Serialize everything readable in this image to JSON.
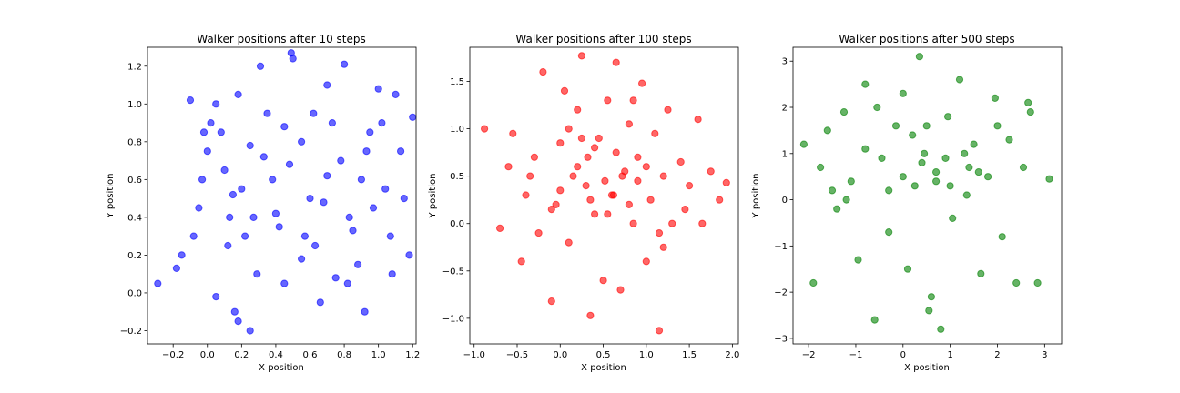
{
  "figure": {
    "background": "#ffffff"
  },
  "chart_data": [
    {
      "type": "scatter",
      "title": "Walker positions after 10 steps",
      "xlabel": "X position",
      "ylabel": "Y position",
      "xlim": [
        -0.35,
        1.22
      ],
      "ylim": [
        -0.27,
        1.3
      ],
      "xticks": [
        -0.2,
        0.0,
        0.2,
        0.4,
        0.6,
        0.8,
        1.0,
        1.2
      ],
      "xtick_labels": [
        "−0.2",
        "0.0",
        "0.2",
        "0.4",
        "0.6",
        "0.8",
        "1.0",
        "1.2"
      ],
      "yticks": [
        -0.2,
        0.0,
        0.2,
        0.4,
        0.6,
        0.8,
        1.0,
        1.2
      ],
      "ytick_labels": [
        "−0.2",
        "0.0",
        "0.2",
        "0.4",
        "0.6",
        "0.8",
        "1.0",
        "1.2"
      ],
      "grid": false,
      "color": "#0000ff",
      "alpha": 0.6,
      "series": [
        {
          "x": [
            -0.29,
            -0.18,
            -0.15,
            -0.08,
            -0.05,
            -0.03,
            0.0,
            0.02,
            0.05,
            0.08,
            0.1,
            0.13,
            0.16,
            0.18,
            0.22,
            0.25,
            0.29,
            0.31,
            0.35,
            0.38,
            0.42,
            0.45,
            0.49,
            0.5,
            0.55,
            0.6,
            0.63,
            0.66,
            0.7,
            0.73,
            0.78,
            0.8,
            0.83,
            0.88,
            0.92,
            0.95,
            1.0,
            1.04,
            1.07,
            1.1,
            1.13,
            1.15,
            1.18,
            1.2,
            -0.1,
            0.05,
            0.15,
            0.25,
            0.4,
            0.55,
            0.7,
            0.85,
            1.02,
            0.2,
            0.48,
            0.75,
            0.97,
            0.12,
            0.33,
            0.62,
            0.9,
            1.08,
            -0.02,
            0.27,
            0.57,
            0.82,
            0.18,
            0.45,
            0.68,
            0.93
          ],
          "y": [
            0.05,
            0.13,
            0.2,
            0.3,
            0.45,
            0.6,
            0.75,
            0.9,
            1.0,
            0.85,
            0.65,
            0.4,
            -0.1,
            -0.15,
            0.3,
            -0.2,
            0.1,
            1.2,
            0.95,
            0.6,
            0.35,
            0.05,
            1.27,
            1.24,
            0.8,
            0.5,
            0.25,
            -0.05,
            1.1,
            0.9,
            0.7,
            1.21,
            0.4,
            0.15,
            -0.1,
            0.85,
            1.08,
            0.55,
            0.3,
            1.05,
            0.75,
            0.5,
            0.2,
            0.93,
            1.02,
            -0.02,
            0.52,
            0.78,
            0.42,
            0.18,
            0.62,
            0.33,
            0.9,
            0.55,
            0.68,
            0.08,
            0.45,
            0.25,
            0.72,
            0.95,
            0.6,
            0.1,
            0.85,
            0.4,
            0.3,
            0.05,
            1.05,
            0.88,
            0.48,
            0.75
          ]
        }
      ]
    },
    {
      "type": "scatter",
      "title": "Walker positions after 100 steps",
      "xlabel": "X position",
      "ylabel": "Y position",
      "xlim": [
        -1.05,
        2.07
      ],
      "ylim": [
        -1.27,
        1.86
      ],
      "xticks": [
        -1.0,
        -0.5,
        0.0,
        0.5,
        1.0,
        1.5,
        2.0
      ],
      "xtick_labels": [
        "−1.0",
        "−0.5",
        "0.0",
        "0.5",
        "1.0",
        "1.5",
        "2.0"
      ],
      "yticks": [
        -1.0,
        -0.5,
        0.0,
        0.5,
        1.0,
        1.5
      ],
      "ytick_labels": [
        "−1.0",
        "−0.5",
        "0.0",
        "0.5",
        "1.0",
        "1.5"
      ],
      "grid": false,
      "color": "#ff0000",
      "alpha": 0.6,
      "series": [
        {
          "x": [
            -0.88,
            -0.7,
            -0.6,
            -0.55,
            -0.45,
            -0.4,
            -0.3,
            -0.25,
            -0.2,
            -0.1,
            -0.05,
            0.0,
            0.05,
            0.1,
            0.15,
            0.2,
            0.25,
            0.3,
            0.35,
            0.4,
            0.45,
            0.5,
            0.55,
            0.6,
            0.65,
            0.7,
            0.75,
            0.8,
            0.85,
            0.9,
            0.95,
            1.0,
            1.05,
            1.1,
            1.15,
            1.2,
            1.25,
            1.3,
            1.4,
            1.5,
            1.6,
            1.65,
            1.75,
            1.85,
            1.93,
            -0.1,
            0.2,
            0.32,
            0.52,
            0.62,
            0.72,
            1.15,
            0.1,
            0.4,
            0.8,
            1.0,
            -0.35,
            0.0,
            0.25,
            0.55,
            0.9,
            1.2,
            1.45,
            0.35,
            0.65,
            0.85
          ],
          "y": [
            1.0,
            -0.05,
            0.6,
            0.95,
            -0.4,
            0.3,
            0.7,
            -0.1,
            1.6,
            -0.82,
            0.2,
            0.85,
            1.4,
            -0.2,
            0.5,
            1.2,
            1.77,
            0.4,
            -0.97,
            0.1,
            0.9,
            -0.6,
            1.3,
            0.3,
            1.7,
            -0.7,
            0.55,
            1.05,
            0.0,
            0.7,
            1.48,
            -0.4,
            0.25,
            0.95,
            -0.1,
            0.5,
            1.2,
            0.0,
            0.65,
            0.4,
            1.1,
            0.0,
            0.55,
            0.25,
            0.43,
            0.15,
            0.6,
            0.7,
            0.45,
            0.3,
            0.5,
            -1.13,
            1.0,
            0.8,
            0.2,
            0.6,
            0.5,
            0.35,
            0.9,
            0.1,
            0.45,
            -0.25,
            0.15,
            0.25,
            0.75,
            1.3
          ]
        }
      ]
    },
    {
      "type": "scatter",
      "title": "Walker positions after 500 steps",
      "xlabel": "X position",
      "ylabel": "Y position",
      "xlim": [
        -2.33,
        3.36
      ],
      "ylim": [
        -3.12,
        3.3
      ],
      "xticks": [
        -2,
        -1,
        0,
        1,
        2,
        3
      ],
      "xtick_labels": [
        "−2",
        "−1",
        "0",
        "1",
        "2",
        "3"
      ],
      "yticks": [
        -3,
        -2,
        -1,
        0,
        1,
        2,
        3
      ],
      "ytick_labels": [
        "−3",
        "−2",
        "−1",
        "0",
        "1",
        "2",
        "3"
      ],
      "grid": false,
      "color": "#008000",
      "alpha": 0.6,
      "series": [
        {
          "x": [
            -2.1,
            -1.9,
            -1.75,
            -1.6,
            -1.4,
            -1.25,
            -1.1,
            -0.95,
            -0.8,
            -0.6,
            -0.45,
            -0.3,
            -0.15,
            0.0,
            0.1,
            0.25,
            0.35,
            0.45,
            0.55,
            0.7,
            0.8,
            0.95,
            1.05,
            1.2,
            1.35,
            1.5,
            1.65,
            1.8,
            1.95,
            2.1,
            2.25,
            2.4,
            2.55,
            2.7,
            2.85,
            3.1,
            -0.55,
            0.4,
            0.7,
            -1.2,
            1.3,
            2.65,
            0.6,
            -0.3,
            0.2,
            0.9,
            1.6,
            -0.8,
            0.0,
            0.5,
            1.0,
            1.4,
            -1.5,
            2.0
          ],
          "y": [
            1.2,
            -1.8,
            0.7,
            1.5,
            -0.2,
            1.9,
            0.4,
            -1.3,
            2.5,
            -2.6,
            0.9,
            -0.7,
            1.6,
            2.3,
            -1.5,
            0.3,
            3.1,
            1.0,
            -2.4,
            0.6,
            -2.8,
            1.8,
            -0.4,
            2.6,
            0.1,
            1.2,
            -1.6,
            0.5,
            2.2,
            -0.8,
            1.3,
            -1.8,
            0.7,
            1.9,
            -1.8,
            0.45,
            2.0,
            0.8,
            0.4,
            0.0,
            1.0,
            2.1,
            -2.1,
            0.2,
            1.4,
            0.9,
            0.6,
            1.1,
            0.5,
            1.6,
            0.3,
            0.7,
            0.2,
            1.6
          ]
        }
      ]
    }
  ]
}
